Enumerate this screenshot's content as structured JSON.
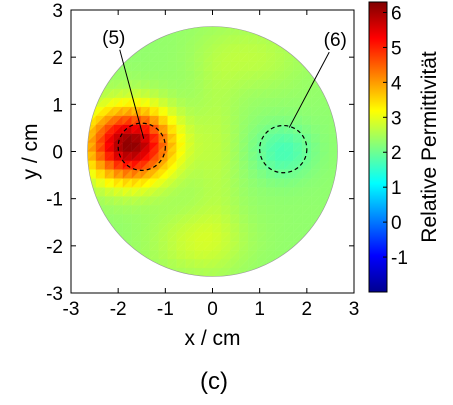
{
  "chart_data": {
    "type": "heatmap",
    "title": "",
    "xlabel": "x / cm",
    "ylabel": "y / cm",
    "xlim": [
      -3,
      3
    ],
    "ylim": [
      -3,
      3
    ],
    "x_ticks": [
      "-3",
      "-2",
      "-1",
      "0",
      "1",
      "2",
      "3"
    ],
    "y_ticks": [
      "3",
      "2",
      "1",
      "0",
      "-1",
      "-2",
      "-3"
    ],
    "domain": {
      "shape": "circle",
      "center": [
        0,
        0
      ],
      "radius": 2.65
    },
    "colorbar": {
      "label": "Relative Permittivität",
      "range": [
        -2,
        6.3
      ],
      "ticks": [
        "6",
        "5",
        "4",
        "3",
        "2",
        "1",
        "0",
        "-1"
      ],
      "colormap": "jet"
    },
    "background_value": 2.3,
    "blobs": [
      {
        "center": [
          -1.75,
          0.15
        ],
        "sigma": [
          0.62,
          0.52
        ],
        "amplitude": 3.9
      },
      {
        "center": [
          1.5,
          0.0
        ],
        "sigma": [
          0.45,
          0.4
        ],
        "amplitude": -0.6
      },
      {
        "center": [
          -0.3,
          -1.9
        ],
        "sigma": [
          0.7,
          0.5
        ],
        "amplitude": 0.5
      },
      {
        "center": [
          0.8,
          2.0
        ],
        "sigma": [
          0.8,
          0.5
        ],
        "amplitude": 0.35
      },
      {
        "center": [
          0.1,
          0.0
        ],
        "sigma": [
          0.35,
          1.2
        ],
        "amplitude": 0.3
      }
    ],
    "inclusions": [
      {
        "label": "(5)",
        "center": [
          -1.5,
          0.1
        ],
        "radius": 0.5,
        "style": "dashed"
      },
      {
        "label": "(6)",
        "center": [
          1.5,
          0.05
        ],
        "radius": 0.5,
        "style": "dashed"
      }
    ],
    "annotations": [
      {
        "text": "(5)",
        "points_to": "inclusion-5"
      },
      {
        "text": "(6)",
        "points_to": "inclusion-6"
      }
    ]
  },
  "caption": "(c)"
}
